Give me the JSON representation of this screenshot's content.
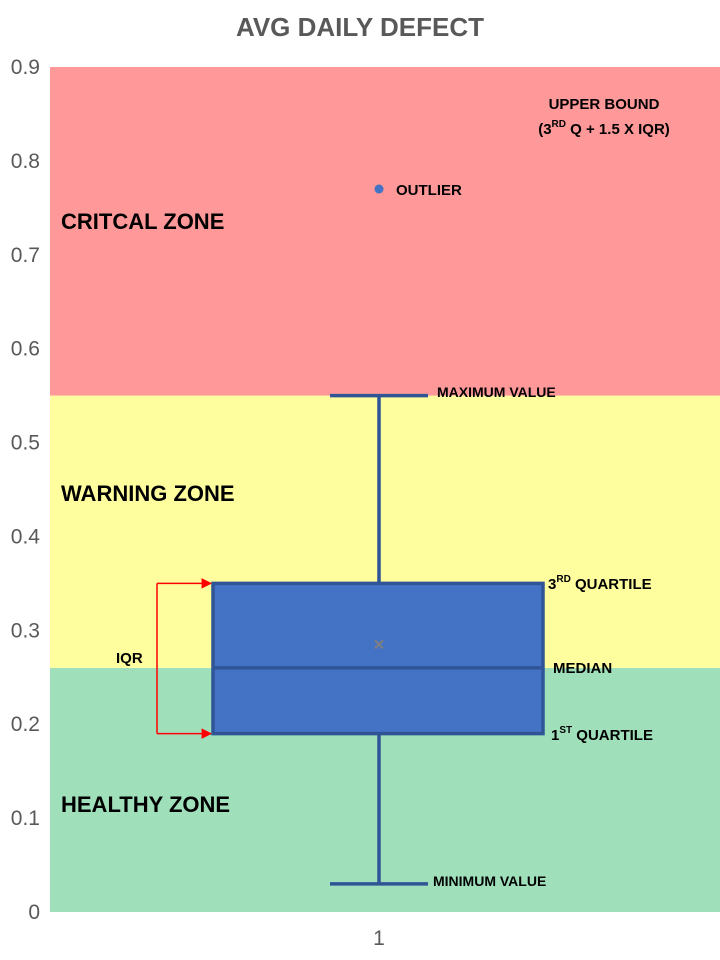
{
  "chart_data": {
    "type": "box",
    "title": "AVG DAILY DEFECT",
    "xlabel": "",
    "ylabel": "",
    "categories": [
      "1"
    ],
    "ylim": [
      0,
      0.9
    ],
    "yticks": [
      "0",
      "0.1",
      "0.2",
      "0.3",
      "0.4",
      "0.5",
      "0.6",
      "0.7",
      "0.8",
      "0.9"
    ],
    "grid": false,
    "box": {
      "min": 0.03,
      "q1": 0.19,
      "median": 0.26,
      "q3": 0.35,
      "max": 0.55,
      "mean": 0.285,
      "outliers": [
        0.77
      ]
    },
    "zones": [
      {
        "label": "HEALTHY ZONE",
        "from": 0,
        "to": 0.26,
        "color": "#9fe0bb"
      },
      {
        "label": "WARNING ZONE",
        "from": 0.26,
        "to": 0.55,
        "color": "#fffe9f"
      },
      {
        "label": "CRITCAL ZONE",
        "from": 0.55,
        "to": 0.9,
        "color": "#ff9999"
      }
    ],
    "annotations": {
      "upper_bound_line1": "UPPER BOUND",
      "upper_bound_open": "(3",
      "upper_bound_sup": "RD",
      "upper_bound_rest": " Q  + 1.5 X IQR)",
      "outlier": "OUTLIER",
      "maximum": "MAXIMUM VALUE",
      "q3_base": "3",
      "q3_sup": "RD",
      "q3_rest": " QUARTILE",
      "median": "MEDIAN",
      "q1_base": "1",
      "q1_sup": "ST",
      "q1_rest": " QUARTILE",
      "minimum": "MINIMUM VALUE",
      "iqr": "IQR"
    },
    "colors": {
      "box_fill": "#4472c4",
      "box_stroke": "#2f5597",
      "outlier": "#4472c4",
      "arrow": "#ff0000",
      "mean_marker": "#7f7f7f"
    }
  }
}
